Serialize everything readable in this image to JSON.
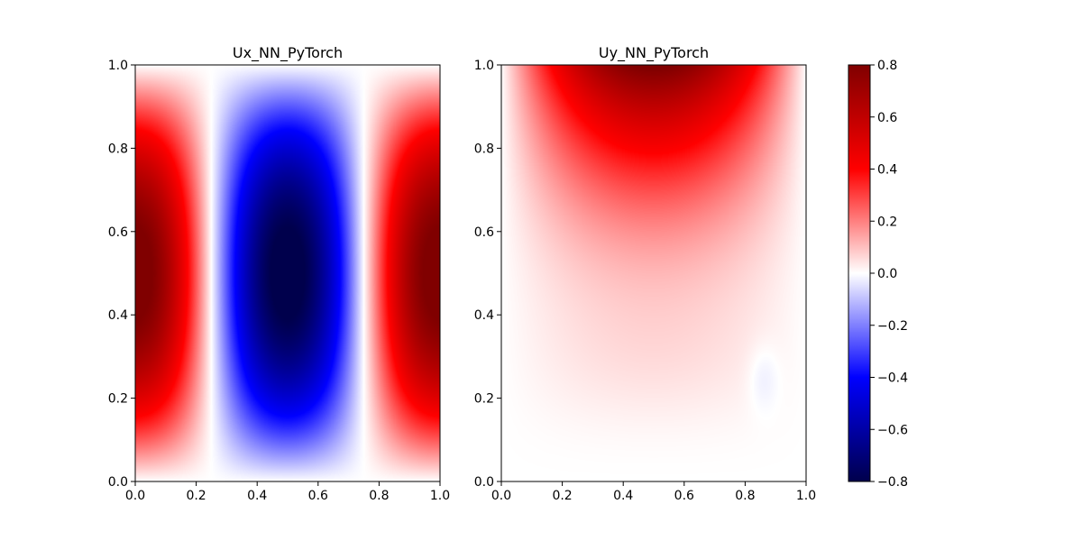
{
  "chart_data": [
    {
      "type": "heatmap",
      "title": "Ux_NN_PyTorch",
      "xlabel": "",
      "ylabel": "",
      "xlim": [
        0,
        1
      ],
      "ylim": [
        0,
        1
      ],
      "xticks": [
        "0.0",
        "0.2",
        "0.4",
        "0.6",
        "0.8",
        "1.0"
      ],
      "yticks": [
        "0.0",
        "0.2",
        "0.4",
        "0.6",
        "0.8",
        "1.0"
      ],
      "field": "u(x,y) ≈ 0.8·cos(2πx)·sin(πy); positive (red) lobes near x=0 and x=1, negative (blue) lobe centered at x=0.5, near zero at y=0 and y=1",
      "samples": {
        "x": [
          0.0,
          0.1,
          0.25,
          0.4,
          0.5,
          0.6,
          0.75,
          0.9,
          1.0
        ],
        "y_at_0.5": [
          0.8,
          0.65,
          0.0,
          -0.65,
          -0.8,
          -0.65,
          0.0,
          0.65,
          0.8
        ]
      },
      "grid": false
    },
    {
      "type": "heatmap",
      "title": "Uy_NN_PyTorch",
      "xlabel": "",
      "ylabel": "",
      "xlim": [
        0,
        1
      ],
      "ylim": [
        0,
        1
      ],
      "xticks": [
        "0.0",
        "0.2",
        "0.4",
        "0.6",
        "0.8",
        "1.0"
      ],
      "yticks": [
        "0.0",
        "0.2",
        "0.4",
        "0.6",
        "0.8",
        "1.0"
      ],
      "field": "positive maximum (~0.8) at top center (x≈0.5, y≈1.0), decaying downward; near 0 below y≈0.3 with slight negative patches near x≈0.85, y≈0.25",
      "samples": {
        "y": [
          1.0,
          0.9,
          0.8,
          0.6,
          0.4,
          0.2,
          0.0
        ],
        "x_at_0.5": [
          0.8,
          0.6,
          0.4,
          0.15,
          0.08,
          0.05,
          0.0
        ]
      },
      "grid": false
    }
  ],
  "colorbar": {
    "colormap": "seismic",
    "range": [
      -0.8,
      0.8
    ],
    "ticks": [
      "0.8",
      "0.6",
      "0.4",
      "0.2",
      "0.0",
      "−0.2",
      "−0.4",
      "−0.6",
      "−0.8"
    ]
  },
  "colors": {
    "max": "#800000",
    "pos_mid": "#ff0000",
    "zero": "#ffffff",
    "neg_mid": "#0000ff",
    "min": "#00004c"
  }
}
